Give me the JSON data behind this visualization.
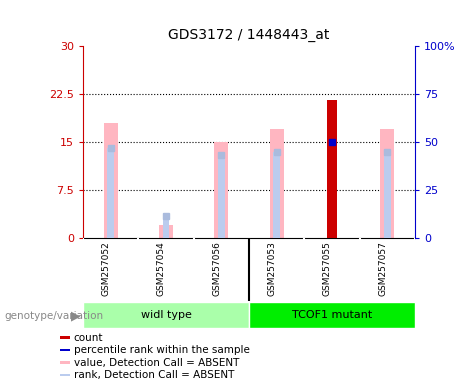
{
  "title": "GDS3172 / 1448443_at",
  "samples": [
    "GSM257052",
    "GSM257054",
    "GSM257056",
    "GSM257053",
    "GSM257055",
    "GSM257057"
  ],
  "ylim_left": [
    0,
    30
  ],
  "ylim_right": [
    0,
    100
  ],
  "yticks_left": [
    0,
    7.5,
    15,
    22.5,
    30
  ],
  "ytick_labels_left": [
    "0",
    "7.5",
    "15",
    "22.5",
    "30"
  ],
  "yticks_right": [
    0,
    25,
    50,
    75,
    100
  ],
  "ytick_labels_right": [
    "0",
    "25",
    "50",
    "75",
    "100%"
  ],
  "hlines": [
    7.5,
    15.0,
    22.5
  ],
  "absent_value_heights": [
    18.0,
    2.0,
    15.0,
    17.0,
    0.0,
    17.0
  ],
  "absent_rank_heights": [
    14.0,
    3.5,
    13.0,
    13.5,
    0.0,
    13.5
  ],
  "count_heights": [
    0.0,
    0.0,
    0.0,
    0.0,
    21.5,
    0.0
  ],
  "rank_marker_values": [
    14.0,
    3.5,
    13.0,
    13.5,
    15.0,
    13.5
  ],
  "rank_marker_absent": [
    true,
    true,
    true,
    true,
    false,
    true
  ],
  "absent_value_color": "#FFB6C1",
  "absent_rank_color": "#BBCCEE",
  "count_color": "#CC0000",
  "rank_present_color": "#0000CC",
  "rank_absent_color": "#AABBDD",
  "left_axis_color": "#CC0000",
  "right_axis_color": "#0000CC",
  "wt_color": "#AAFFAA",
  "mutant_color": "#00EE00",
  "sample_box_color": "#CCCCCC",
  "bg_color": "#FFFFFF",
  "plot_area_bg": "#FFFFFF",
  "genotype_label": "genotype/variation",
  "wt_label": "widl type",
  "mutant_label": "TCOF1 mutant",
  "legend_items": [
    {
      "color": "#CC0000",
      "label": "count"
    },
    {
      "color": "#0000CC",
      "label": "percentile rank within the sample"
    },
    {
      "color": "#FFB6C1",
      "label": "value, Detection Call = ABSENT"
    },
    {
      "color": "#BBCCEE",
      "label": "rank, Detection Call = ABSENT"
    }
  ]
}
